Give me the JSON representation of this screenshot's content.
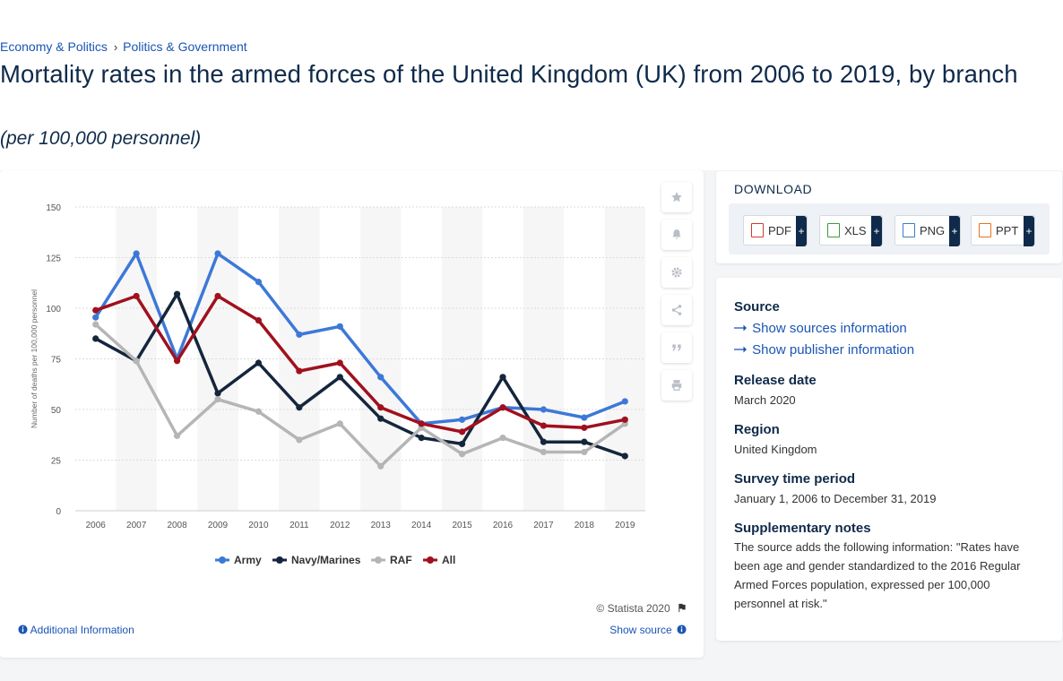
{
  "breadcrumb": {
    "item1": "Economy & Politics",
    "sep": "›",
    "item2": "Politics & Government"
  },
  "title": "Mortality rates in the armed forces of the United Kingdom (UK) from 2006 to 2019, by branch",
  "subtitle": "(per 100,000 personnel)",
  "tools": [
    "star-icon",
    "bell-icon",
    "gear-icon",
    "share-icon",
    "quote-icon",
    "print-icon"
  ],
  "footer": {
    "copyright": "© Statista 2020",
    "additional_info": "Additional Information",
    "show_source": "Show source"
  },
  "download": {
    "title": "DOWNLOAD",
    "buttons": [
      {
        "label": "PDF",
        "color": "#d33b2c"
      },
      {
        "label": "XLS",
        "color": "#3c9a3c"
      },
      {
        "label": "PNG",
        "color": "#3b7dc4"
      },
      {
        "label": "PPT",
        "color": "#e5731c"
      }
    ],
    "plus": "+"
  },
  "info": {
    "source_heading": "Source",
    "show_sources": "Show sources information",
    "show_publisher": "Show publisher information",
    "release_heading": "Release date",
    "release_value": "March 2020",
    "region_heading": "Region",
    "region_value": "United Kingdom",
    "survey_heading": "Survey time period",
    "survey_value": "January 1, 2006 to December 31, 2019",
    "notes_heading": "Supplementary notes",
    "notes_value": "The source adds the following information: \"Rates have been age and gender standardized to the 2016 Regular Armed Forces population, expressed per 100,000 personnel at risk.\""
  },
  "chart_data": {
    "type": "line",
    "title": "",
    "xlabel": "",
    "ylabel": "Number of deaths per 100,000 personnel",
    "x": [
      "2006",
      "2007",
      "2008",
      "2009",
      "2010",
      "2011",
      "2012",
      "2013",
      "2014",
      "2015",
      "2016",
      "2017",
      "2018",
      "2019"
    ],
    "ylim": [
      0,
      150
    ],
    "yticks": [
      0,
      25,
      50,
      75,
      100,
      125,
      150
    ],
    "grid": true,
    "legend": "bottom",
    "series": [
      {
        "name": "Army",
        "color": "#3d78d8",
        "values": [
          95.5,
          127,
          75,
          127,
          113,
          87,
          91,
          66,
          43,
          45,
          51,
          50,
          46,
          54
        ]
      },
      {
        "name": "Navy/Marines",
        "color": "#14263c",
        "values": [
          85,
          74,
          107,
          58,
          73,
          51,
          66,
          45.5,
          36,
          33,
          66,
          34,
          34,
          27
        ]
      },
      {
        "name": "RAF",
        "color": "#b5b5b5",
        "values": [
          92,
          74,
          37,
          55,
          49,
          35,
          43,
          22,
          41,
          28,
          36,
          29,
          29,
          43
        ]
      },
      {
        "name": "All",
        "color": "#a0101e",
        "values": [
          99,
          106,
          74,
          106,
          94,
          69,
          73,
          51,
          43,
          39,
          51,
          42,
          41,
          45
        ]
      }
    ]
  }
}
